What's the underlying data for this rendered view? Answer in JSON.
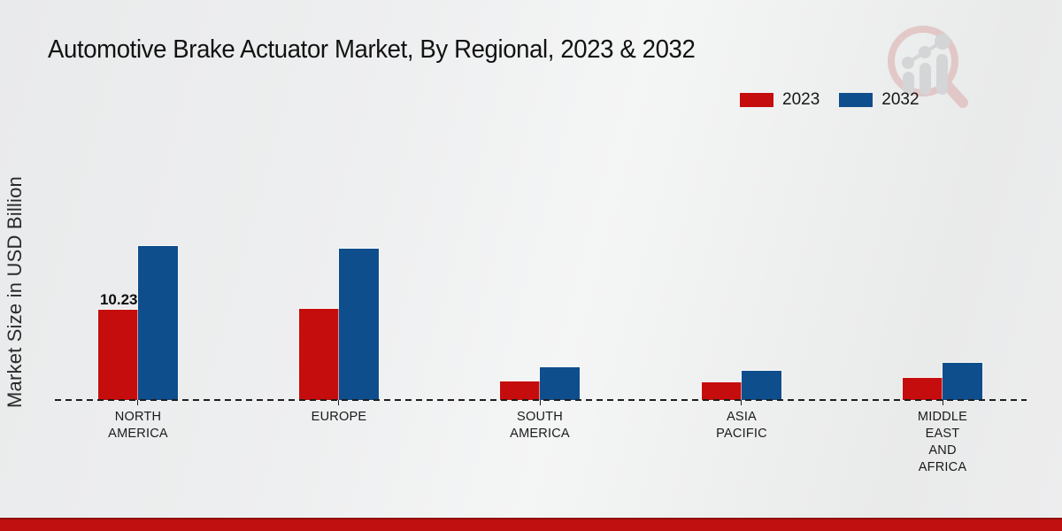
{
  "page": {
    "title": "Automotive Brake Actuator Market, By Regional, 2023 & 2032"
  },
  "y_axis": {
    "label": "Market Size in USD Billion"
  },
  "legend": {
    "items": [
      {
        "label": "2023",
        "color": "#c50d0d"
      },
      {
        "label": "2032",
        "color": "#0f4e8c"
      }
    ]
  },
  "colors": {
    "series_2023": "#c50d0d",
    "series_2032": "#0f4e8c",
    "footer_band": "#c01010",
    "footer_band_edge": "#8f0d0d",
    "baseline": "#1f1f1f",
    "background": "#edeeef"
  },
  "logo": {
    "name": "market-research-future-watermark"
  },
  "chart_data": {
    "type": "bar",
    "title": "Automotive Brake Actuator Market, By Regional, 2023 & 2032",
    "xlabel": "",
    "ylabel": "Market Size in USD Billion",
    "categories": [
      "NORTH AMERICA",
      "EUROPE",
      "SOUTH AMERICA",
      "ASIA PACIFIC",
      "MIDDLE EAST AND AFRICA"
    ],
    "category_lines": [
      [
        "NORTH",
        "AMERICA"
      ],
      [
        "EUROPE"
      ],
      [
        "SOUTH",
        "AMERICA"
      ],
      [
        "ASIA",
        "PACIFIC"
      ],
      [
        "MIDDLE",
        "EAST",
        "AND",
        "AFRICA"
      ]
    ],
    "series": [
      {
        "name": "2023",
        "color": "#c50d0d",
        "values": [
          10.23,
          10.33,
          2.1,
          2.0,
          2.5
        ],
        "value_labels": [
          "10.23",
          "",
          "",
          "",
          ""
        ]
      },
      {
        "name": "2032",
        "color": "#0f4e8c",
        "values": [
          17.5,
          17.15,
          3.7,
          3.3,
          4.2
        ],
        "value_labels": [
          "",
          "",
          "",
          "",
          ""
        ]
      }
    ],
    "ylim": [
      0,
      20
    ],
    "grid": false,
    "axis_style": "dashed-baseline-only",
    "legend_position": "top-right",
    "units": "USD Billion"
  }
}
